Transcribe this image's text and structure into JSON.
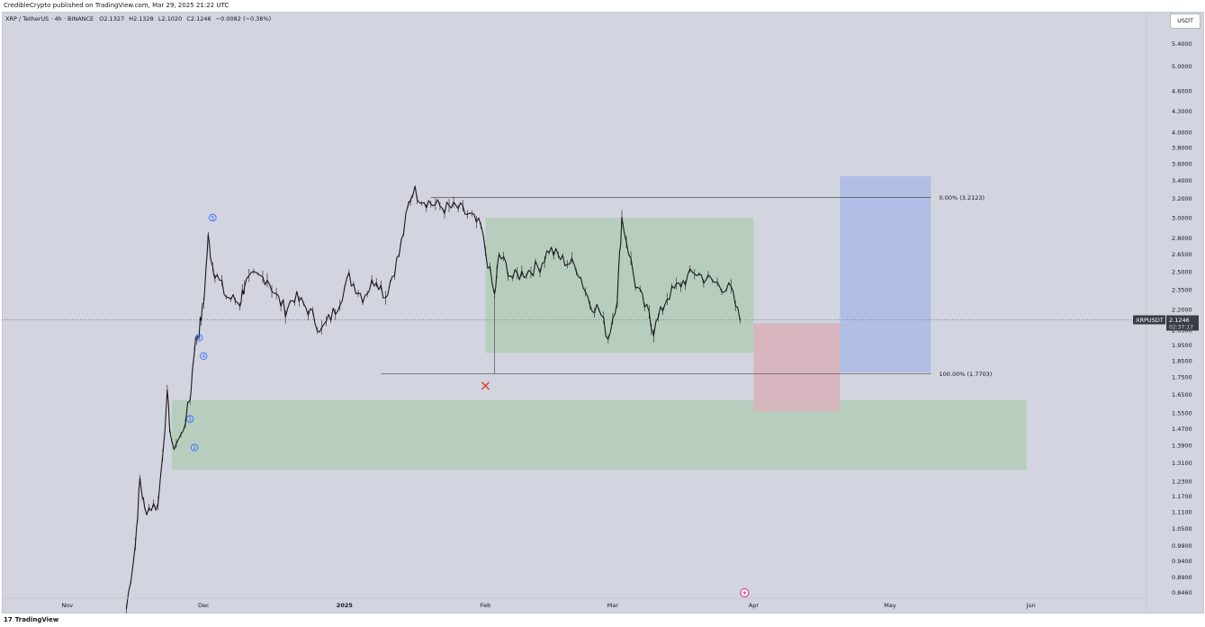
{
  "header": {
    "publisher": "CredibleCrypto published on TradingView.com, Mar 29, 2025 21:22 UTC"
  },
  "legend": {
    "symbol": "XRP / TetherUS · 4h · BINANCE",
    "o": "O2.1327",
    "h": "H2.1328",
    "l": "L2.1020",
    "c": "C2.1246",
    "chg": "−0.0082 (−0.38%)"
  },
  "currency_button": "USDT",
  "price_tag": {
    "symbol": "XRPUSDT",
    "price": "2.1246",
    "countdown": "02:37:17"
  },
  "footer": {
    "logo_mark": "17",
    "brand": "TradingView"
  },
  "colors": {
    "background": "#d2d5df",
    "candles": "#1a1a1a",
    "green_zone": "#b5cdbd",
    "red_zone": "#d7b4bd",
    "blue_zone": "#afbde5",
    "wave_label": "#2962ff",
    "invalidation_x": "#e53935",
    "price_tag_bg": "#3a3d46"
  },
  "chart_data": {
    "type": "line",
    "title": "XRP / TetherUS · 4h · BINANCE",
    "xlabel": "",
    "ylabel": "",
    "y_scale": "log",
    "ylim": [
      0.8,
      5.8
    ],
    "x_ticks": [
      "Nov",
      "Dec",
      "2025",
      "Feb",
      "Mar",
      "Apr",
      "May",
      "Jun"
    ],
    "x_tick_dates": [
      "2024-11-01",
      "2024-12-01",
      "2025-01-01",
      "2025-02-01",
      "2025-03-01",
      "2025-04-01",
      "2025-05-01",
      "2025-06-01"
    ],
    "y_ticks": [
      "5.4000",
      "5.0000",
      "4.6000",
      "4.3000",
      "4.0000",
      "3.8000",
      "3.6000",
      "3.4000",
      "3.2000",
      "3.0000",
      "2.8000",
      "2.6500",
      "2.5000",
      "2.3500",
      "2.2000",
      "2.0500",
      "1.9500",
      "1.8500",
      "1.7500",
      "1.6500",
      "1.5500",
      "1.4700",
      "1.3900",
      "1.3100",
      "1.2300",
      "1.1700",
      "1.1100",
      "1.0500",
      "0.9900",
      "0.9400",
      "0.8900",
      "0.8460"
    ],
    "series": [
      {
        "name": "",
        "x": [
          "2024-11-14",
          "2024-11-16",
          "2024-11-17",
          "2024-11-18",
          "2024-11-21",
          "2024-11-23",
          "2024-11-24",
          "2024-11-26",
          "2024-11-28",
          "2024-11-29",
          "2024-11-30",
          "2024-12-01",
          "2024-12-02",
          "2024-12-03",
          "2024-12-04",
          "2024-12-06",
          "2024-12-09",
          "2024-12-10",
          "2024-12-12",
          "2024-12-15",
          "2024-12-17",
          "2024-12-19",
          "2024-12-21",
          "2024-12-24",
          "2024-12-27",
          "2024-12-30",
          "2025-01-02",
          "2025-01-05",
          "2025-01-08",
          "2025-01-10",
          "2025-01-13",
          "2025-01-15",
          "2025-01-16",
          "2025-01-18",
          "2025-01-20",
          "2025-01-23",
          "2025-01-26",
          "2025-01-29",
          "2025-01-31",
          "2025-02-03",
          "2025-02-04",
          "2025-02-07",
          "2025-02-10",
          "2025-02-13",
          "2025-02-15",
          "2025-02-18",
          "2025-02-21",
          "2025-02-24",
          "2025-02-26",
          "2025-02-28",
          "2025-03-02",
          "2025-03-03",
          "2025-03-06",
          "2025-03-09",
          "2025-03-10",
          "2025-03-13",
          "2025-03-16",
          "2025-03-19",
          "2025-03-21",
          "2025-03-24",
          "2025-03-27",
          "2025-03-29"
        ],
        "y": [
          0.8,
          1.0,
          1.24,
          1.12,
          1.14,
          1.64,
          1.38,
          1.43,
          1.62,
          1.95,
          2.05,
          2.25,
          2.8,
          2.55,
          2.45,
          2.3,
          2.25,
          2.4,
          2.45,
          2.45,
          2.3,
          2.2,
          2.3,
          2.2,
          2.05,
          2.2,
          2.45,
          2.3,
          2.45,
          2.3,
          2.65,
          3.1,
          3.3,
          3.2,
          3.15,
          3.1,
          3.1,
          3.0,
          2.9,
          2.3,
          2.65,
          2.45,
          2.5,
          2.55,
          2.7,
          2.6,
          2.55,
          2.25,
          2.2,
          2.0,
          2.3,
          3.0,
          2.4,
          2.15,
          2.05,
          2.3,
          2.4,
          2.5,
          2.45,
          2.4,
          2.35,
          2.12
        ]
      }
    ],
    "annotations": {
      "fib_top": {
        "label": "0.00% (3.2123)",
        "value": 3.2123
      },
      "fib_bottom": {
        "label": "100.00% (1.7703)",
        "value": 1.7703
      },
      "zones": [
        {
          "color": "green",
          "x0": "2025-02-01",
          "x1": "2025-04-01",
          "y0": 1.9,
          "y1": 3.0
        },
        {
          "color": "green",
          "x0": "2024-11-24",
          "x1": "2025-05-31",
          "y0": 1.28,
          "y1": 1.62
        },
        {
          "color": "red",
          "x0": "2025-04-01",
          "x1": "2025-04-20",
          "y0": 1.56,
          "y1": 2.1
        },
        {
          "color": "blue",
          "x0": "2025-04-20",
          "x1": "2025-05-10",
          "y0": 1.78,
          "y1": 3.45
        }
      ],
      "waves": [
        {
          "label": "5",
          "date": "2024-12-03",
          "price": 3.0
        },
        {
          "label": "3",
          "date": "2024-11-30",
          "price": 2.0
        },
        {
          "label": "4",
          "date": "2024-12-01",
          "price": 1.88
        },
        {
          "label": "1",
          "date": "2024-11-28",
          "price": 1.52
        },
        {
          "label": "2",
          "date": "2024-11-29",
          "price": 1.38
        }
      ],
      "invalidation": {
        "date": "2025-02-01",
        "price": 1.7
      }
    }
  }
}
